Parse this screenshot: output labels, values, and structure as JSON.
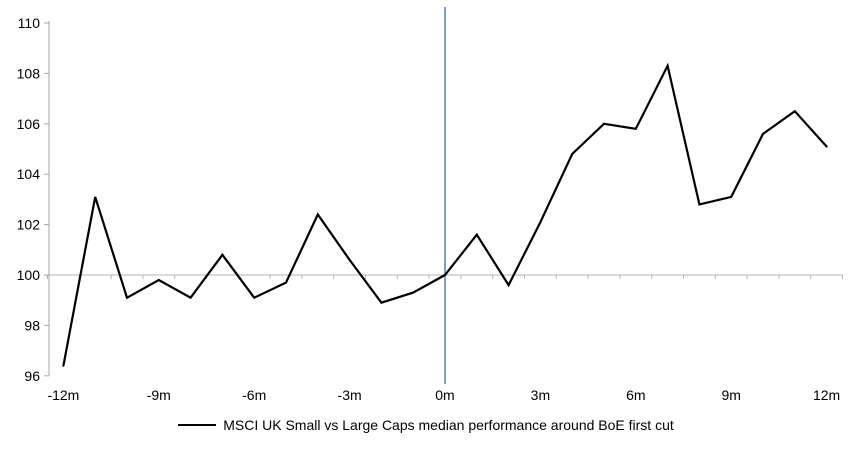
{
  "chart_data": {
    "type": "line",
    "title": "",
    "xlabel": "",
    "ylabel": "",
    "x_unit": "months relative to first cut",
    "x_months": [
      -12,
      -11,
      -10,
      -9,
      -8,
      -7,
      -6,
      -5,
      -4,
      -3,
      -2,
      -1,
      0,
      1,
      2,
      3,
      4,
      5,
      6,
      7,
      8,
      9,
      10,
      11,
      12
    ],
    "x_tick_labels": [
      "-12m",
      "-9m",
      "-6m",
      "-3m",
      "0m",
      "3m",
      "6m",
      "9m",
      "12m"
    ],
    "x_tick_label_months": [
      -12,
      -9,
      -6,
      -3,
      0,
      3,
      6,
      9,
      12
    ],
    "y_ticks": [
      96,
      98,
      100,
      102,
      104,
      106,
      108,
      110
    ],
    "ylim": [
      96,
      110
    ],
    "xlim": [
      -12.5,
      12.5
    ],
    "baseline_value": 100,
    "grid": "baseline-only",
    "legend_position": "bottom-center",
    "series": [
      {
        "name": "MSCI UK Small vs Large Caps median performance around BoE first cut",
        "color": "#000000",
        "values": [
          96.4,
          103.1,
          99.1,
          99.8,
          99.1,
          100.8,
          99.1,
          99.7,
          102.4,
          100.6,
          98.9,
          99.3,
          100.0,
          101.6,
          99.6,
          102.1,
          104.8,
          106.0,
          105.8,
          108.3,
          102.8,
          103.1,
          105.6,
          106.5,
          105.1
        ]
      }
    ],
    "event_line": {
      "month": 0,
      "color": "#4f81bd"
    },
    "axis_color": "#a6a6a6",
    "baseline_color": "#b3b3b3",
    "tick_label_color": "#000000"
  },
  "legend": {
    "label": "MSCI UK Small vs Large Caps median performance around BoE first cut"
  }
}
